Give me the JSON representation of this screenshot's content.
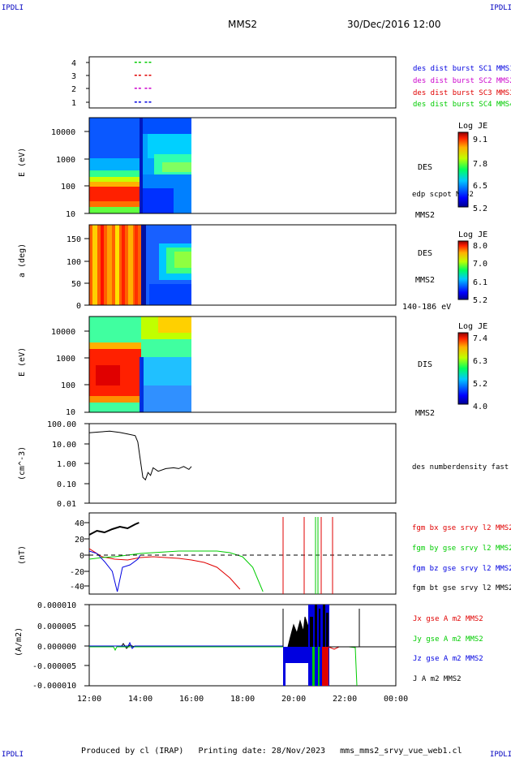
{
  "header": {
    "corner_label": "IPDLI",
    "spacecraft": "MMS2",
    "datetime": "30/Dec/2016 12:00"
  },
  "footer": {
    "text": "Produced by cl (IRAP)   Printing date: 28/Nov/2023   mms_mms2_srvy_vue_web1.cl"
  },
  "colors": {
    "red": "#e00000",
    "green": "#00cc00",
    "blue": "#0000e0",
    "magenta": "#cc00cc",
    "black": "#000000"
  },
  "chart_data": [
    {
      "id": "availability",
      "type": "scatter",
      "yticks": [
        "1",
        "2",
        "3",
        "4"
      ],
      "legend": [
        {
          "label": "des dist burst SC1 MMS1",
          "color": "#0000e0"
        },
        {
          "label": "des dist burst SC2 MMS2",
          "color": "#cc00cc"
        },
        {
          "label": "des dist burst SC3 MMS3",
          "color": "#e00000"
        },
        {
          "label": "des dist burst SC4 MMS4",
          "color": "#00cc00"
        }
      ],
      "series": [
        {
          "level": 4,
          "color": "#00cc00",
          "x_hours": [
            13.9,
            14.3
          ]
        },
        {
          "level": 3,
          "color": "#e00000",
          "x_hours": [
            13.9,
            14.3
          ]
        },
        {
          "level": 2,
          "color": "#cc00cc",
          "x_hours": [
            13.9,
            14.3
          ]
        },
        {
          "level": 1,
          "color": "#0000e0",
          "x_hours": [
            13.9,
            14.3
          ]
        }
      ]
    },
    {
      "id": "des-energy",
      "type": "heatmap",
      "ylabel": "E (eV)",
      "yscale": "log",
      "ylim": [
        10,
        30000
      ],
      "yticks": [
        "10",
        "100",
        "1000",
        "10000"
      ],
      "x_range_hours": [
        12,
        16
      ],
      "label": "DES",
      "side_label": "edp scpot MMS2",
      "bottom_label": "MMS2",
      "colorbar": {
        "title": "Log JE",
        "ticks": [
          "9.1",
          "7.8",
          "6.5",
          "5.2"
        ]
      }
    },
    {
      "id": "des-pitch",
      "type": "heatmap",
      "ylabel": "a (deg)",
      "ylim": [
        0,
        180
      ],
      "yticks": [
        "0",
        "50",
        "100",
        "150"
      ],
      "x_range_hours": [
        12,
        16
      ],
      "label": "DES",
      "side_label": "MMS2",
      "bottom_label": "140-186 eV",
      "colorbar": {
        "title": "Log JE",
        "ticks": [
          "8.0",
          "7.0",
          "6.1",
          "5.2"
        ]
      }
    },
    {
      "id": "dis-energy",
      "type": "heatmap",
      "ylabel": "E (eV)",
      "yscale": "log",
      "ylim": [
        10,
        30000
      ],
      "yticks": [
        "10",
        "100",
        "1000",
        "10000"
      ],
      "x_range_hours": [
        12,
        16
      ],
      "label": "DIS",
      "bottom_label": "MMS2",
      "colorbar": {
        "title": "Log JE",
        "ticks": [
          "7.4",
          "6.3",
          "5.2",
          "4.0"
        ]
      }
    },
    {
      "id": "density",
      "type": "line",
      "ylabel": "(cm^-3)",
      "yscale": "log",
      "ylim": [
        0.01,
        100
      ],
      "yticks": [
        "0.01",
        "0.10",
        "1.00",
        "10.00",
        "100.00"
      ],
      "legend": [
        {
          "label": "des numberdensity fast M",
          "color": "#000000"
        }
      ],
      "series": [
        {
          "name": "des numberdensity fast M",
          "color": "#000000",
          "x": [
            12.0,
            12.4,
            12.8,
            13.2,
            13.5,
            13.8,
            13.9,
            14.0,
            14.1,
            14.2,
            14.3,
            14.4,
            14.5,
            14.7,
            15.0,
            15.3,
            15.5,
            15.7,
            15.9,
            16.0
          ],
          "y": [
            35,
            38,
            42,
            36,
            30,
            25,
            12,
            1.5,
            0.2,
            0.15,
            0.35,
            0.25,
            0.6,
            0.4,
            0.55,
            0.6,
            0.55,
            0.7,
            0.5,
            0.7
          ]
        }
      ]
    },
    {
      "id": "magnetic-field",
      "type": "line",
      "ylabel": "(nT)",
      "ylim": [
        -50,
        50
      ],
      "yticks": [
        "-40",
        "-20",
        "0",
        "20",
        "40"
      ],
      "legend": [
        {
          "label": "fgm bx gse srvy l2 MMS2",
          "color": "#e00000"
        },
        {
          "label": "fgm by gse srvy l2 MMS2",
          "color": "#00cc00"
        },
        {
          "label": "fgm bz gse srvy l2 MMS2",
          "color": "#0000e0"
        },
        {
          "label": "fgm bt gse srvy l2 MMS2",
          "color": "#000000"
        }
      ],
      "series": [
        {
          "name": "bt",
          "color": "#000000",
          "x": [
            12.0,
            12.3,
            12.6,
            12.9,
            13.2,
            13.5,
            13.8,
            13.95
          ],
          "y": [
            25,
            30,
            28,
            32,
            35,
            33,
            38,
            40
          ]
        },
        {
          "name": "bx",
          "color": "#e00000",
          "x": [
            12.0,
            12.5,
            13.0,
            13.5,
            14.0,
            14.5,
            15.0,
            15.5,
            16.0,
            16.5,
            17.0,
            17.5,
            17.9
          ],
          "y": [
            8,
            -2,
            -5,
            -6,
            -3,
            -2,
            -3,
            -4,
            -6,
            -9,
            -15,
            -28,
            -42
          ]
        },
        {
          "name": "by",
          "color": "#00cc00",
          "x": [
            12.0,
            12.5,
            13.0,
            13.5,
            14.0,
            14.5,
            15.0,
            15.5,
            16.0,
            16.5,
            17.0,
            17.5,
            18.0,
            18.4,
            18.8
          ],
          "y": [
            -5,
            -3,
            -2,
            0,
            2,
            3,
            4,
            5,
            5,
            5,
            5,
            3,
            -2,
            -15,
            -45
          ]
        },
        {
          "name": "bz",
          "color": "#0000e0",
          "x": [
            12.0,
            12.3,
            12.6,
            12.9,
            13.1,
            13.3,
            13.6,
            13.9,
            14.0
          ],
          "y": [
            5,
            2,
            -8,
            -20,
            -45,
            -15,
            -12,
            -5,
            0
          ]
        }
      ]
    },
    {
      "id": "current-density",
      "type": "line",
      "ylabel": "(A/m2)",
      "ylim": [
        -0.0001,
        0.0001
      ],
      "yticks": [
        "-0.000010",
        "-0.000005",
        "0.000000",
        "0.000005",
        "0.000010"
      ],
      "legend": [
        {
          "label": "Jx gse A m2 MMS2",
          "color": "#e00000"
        },
        {
          "label": "Jy gse A m2 MMS2",
          "color": "#00cc00"
        },
        {
          "label": "Jz gse A m2 MMS2",
          "color": "#0000e0"
        },
        {
          "label": "J A m2 MMS2",
          "color": "#000000"
        }
      ]
    }
  ],
  "x_axis": {
    "range_hours": [
      12,
      24
    ],
    "ticks": [
      "12:00",
      "14:00",
      "16:00",
      "18:00",
      "20:00",
      "22:00",
      "00:00"
    ]
  }
}
